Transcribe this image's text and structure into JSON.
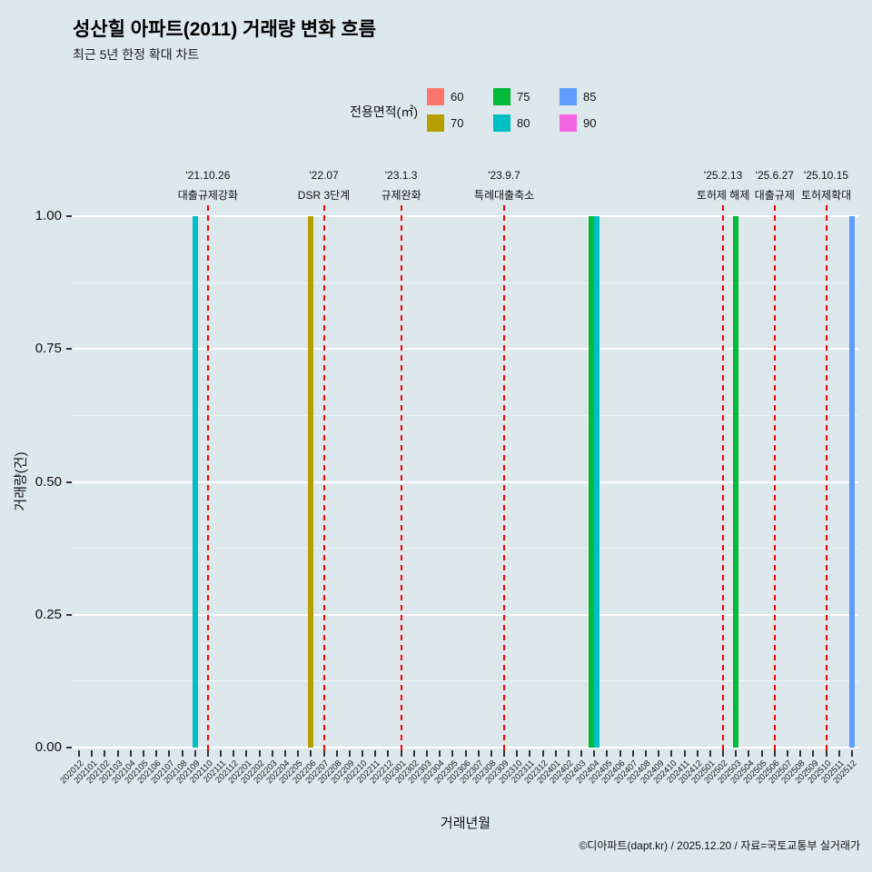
{
  "page": {
    "title": "성산힐 아파트(2011) 거래량 변화 흐름",
    "subtitle": "최근 5년 한정 확대 차트",
    "footer": "©디아파트(dapt.kr) / 2025.12.20 / 자료=국토교통부 실거래가",
    "background": "#dde8ec"
  },
  "legend": {
    "title": "전용면적(㎡)",
    "items": [
      {
        "label": "60",
        "color": "#F8766D"
      },
      {
        "label": "70",
        "color": "#B79F00"
      },
      {
        "label": "75",
        "color": "#00BA38"
      },
      {
        "label": "80",
        "color": "#00BFC4"
      },
      {
        "label": "85",
        "color": "#619CFF"
      },
      {
        "label": "90",
        "color": "#F564E3"
      }
    ]
  },
  "chart_data": {
    "type": "bar",
    "title": "성산힐 아파트(2011) 거래량 변화 흐름",
    "subtitle": "최근 5년 한정 확대 차트",
    "xlabel": "거래년월",
    "ylabel": "거래량(건)",
    "ylim": [
      0,
      1
    ],
    "yticks": [
      "0.00",
      "0.25",
      "0.50",
      "0.75",
      "1.00"
    ],
    "legend_position": "top",
    "grid": "horizontal-white",
    "categories": [
      "202012",
      "202101",
      "202102",
      "202103",
      "202104",
      "202105",
      "202106",
      "202107",
      "202108",
      "202109",
      "202110",
      "202111",
      "202112",
      "202201",
      "202202",
      "202203",
      "202204",
      "202205",
      "202206",
      "202207",
      "202208",
      "202209",
      "202210",
      "202211",
      "202212",
      "202301",
      "202302",
      "202303",
      "202304",
      "202305",
      "202306",
      "202307",
      "202308",
      "202309",
      "202310",
      "202311",
      "202312",
      "202401",
      "202402",
      "202403",
      "202404",
      "202405",
      "202406",
      "202407",
      "202408",
      "202409",
      "202410",
      "202411",
      "202412",
      "202501",
      "202502",
      "202503",
      "202504",
      "202505",
      "202506",
      "202507",
      "202508",
      "202509",
      "202510",
      "202511",
      "202512"
    ],
    "bars": [
      {
        "month": "202109",
        "area": "80",
        "value": 1
      },
      {
        "month": "202206",
        "area": "70",
        "value": 1
      },
      {
        "month": "202404",
        "area": "75",
        "value": 1
      },
      {
        "month": "202404",
        "area": "80",
        "value": 1
      },
      {
        "month": "202503",
        "area": "75",
        "value": 1
      },
      {
        "month": "202512",
        "area": "85",
        "value": 1
      }
    ],
    "annotations": [
      {
        "date": "'21.10.26",
        "label": "대출규제강화",
        "month": "202110"
      },
      {
        "date": "'22.07",
        "label": "DSR 3단계",
        "month": "202207"
      },
      {
        "date": "'23.1.3",
        "label": "규제완화",
        "month": "202301"
      },
      {
        "date": "'23.9.7",
        "label": "특례대출축소",
        "month": "202309"
      },
      {
        "date": "'25.2.13",
        "label": "토허제 해제",
        "month": "202502"
      },
      {
        "date": "'25.6.27",
        "label": "대출규제",
        "month": "202506"
      },
      {
        "date": "'25.10.15",
        "label": "토허제확대",
        "month": "202510"
      }
    ]
  }
}
